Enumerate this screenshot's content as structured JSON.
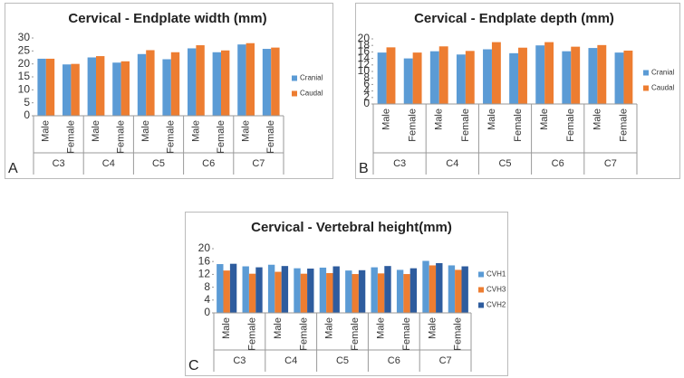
{
  "chart_data": [
    {
      "type": "bar",
      "title": "Cervical - Endplate width (mm)",
      "panel_label": "A",
      "categories": [
        "Male",
        "Female",
        "Male",
        "Female",
        "Male",
        "Female",
        "Male",
        "Female",
        "Male",
        "Female"
      ],
      "groups": [
        "C3",
        "C4",
        "C5",
        "C6",
        "C7"
      ],
      "series": [
        {
          "name": "Cranial",
          "color": "#5b9bd5",
          "values": [
            22,
            19.8,
            22.5,
            20.5,
            23.8,
            21.8,
            26,
            24.5,
            27.5,
            25.8
          ]
        },
        {
          "name": "Caudal",
          "color": "#ed7d31",
          "values": [
            22,
            20,
            23,
            21,
            25.3,
            24.5,
            27.2,
            25.2,
            28,
            26.3
          ]
        }
      ],
      "ylim": [
        0,
        30
      ],
      "yticks": [
        0,
        5,
        10,
        15,
        20,
        25,
        30
      ],
      "legend": "right"
    },
    {
      "type": "bar",
      "title": "Cervical - Endplate depth (mm)",
      "panel_label": "B",
      "categories": [
        "Male",
        "Female",
        "Male",
        "Female",
        "Male",
        "Female",
        "Male",
        "Female",
        "Male",
        "Female"
      ],
      "groups": [
        "C3",
        "C4",
        "C5",
        "C6",
        "C7"
      ],
      "series": [
        {
          "name": "Cranial",
          "color": "#5b9bd5",
          "values": [
            15.8,
            14,
            16.2,
            15.2,
            16.8,
            15.6,
            18,
            16.2,
            17.2,
            15.8
          ]
        },
        {
          "name": "Caudal",
          "color": "#ed7d31",
          "values": [
            17.4,
            15.8,
            17.7,
            16.3,
            19,
            17.3,
            19,
            17.6,
            18.1,
            16.4
          ]
        }
      ],
      "ylim": [
        0,
        20
      ],
      "yticks": [
        0,
        2,
        4,
        6,
        8,
        10,
        12,
        14,
        16,
        18,
        20
      ],
      "legend": "right"
    },
    {
      "type": "bar",
      "title": "Cervical - Vertebral height(mm)",
      "panel_label": "C",
      "categories": [
        "Male",
        "Female",
        "Male",
        "Female",
        "Male",
        "Female",
        "Male",
        "Female",
        "Male",
        "Female"
      ],
      "groups": [
        "C3",
        "C4",
        "C5",
        "C6",
        "C7"
      ],
      "series": [
        {
          "name": "CVH1",
          "color": "#5b9bd5",
          "values": [
            15.2,
            14.5,
            15,
            13.9,
            14.1,
            13.2,
            14.2,
            13.4,
            16.2,
            14.8
          ]
        },
        {
          "name": "CVH3",
          "color": "#ed7d31",
          "values": [
            13.2,
            12.2,
            12.8,
            12.2,
            12.4,
            12.1,
            12.3,
            12.1,
            14.8,
            13.4
          ]
        },
        {
          "name": "CVH2",
          "color": "#2e5c9e",
          "values": [
            15.3,
            14.2,
            14.6,
            13.8,
            14.5,
            13.3,
            14.6,
            13.9,
            15.5,
            14.5
          ]
        }
      ],
      "ylim": [
        0,
        20
      ],
      "yticks": [
        0,
        4,
        8,
        12,
        16,
        20
      ],
      "legend": "right"
    }
  ]
}
